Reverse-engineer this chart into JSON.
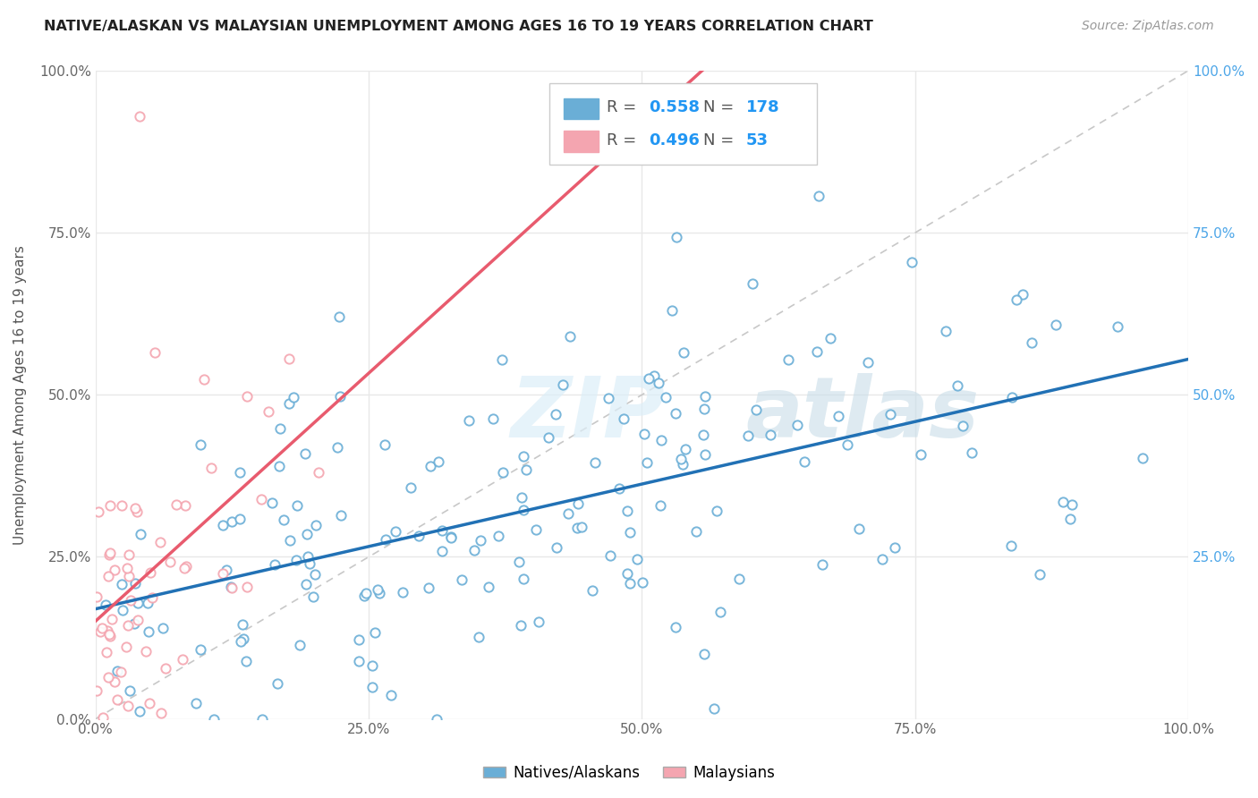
{
  "title": "NATIVE/ALASKAN VS MALAYSIAN UNEMPLOYMENT AMONG AGES 16 TO 19 YEARS CORRELATION CHART",
  "source": "Source: ZipAtlas.com",
  "ylabel": "Unemployment Among Ages 16 to 19 years",
  "legend_blue_label": "Natives/Alaskans",
  "legend_pink_label": "Malaysians",
  "blue_R": 0.558,
  "blue_N": 178,
  "pink_R": 0.496,
  "pink_N": 53,
  "blue_color": "#6aaed6",
  "pink_color": "#f4a5b0",
  "blue_line_color": "#2171b5",
  "pink_line_color": "#e85b6e",
  "dashed_line_color": "#c8c8c8",
  "watermark_zip": "ZIP",
  "watermark_atlas": "atlas",
  "background_color": "#ffffff",
  "grid_color": "#e8e8e8",
  "seed": 42,
  "xlim": [
    0.0,
    1.0
  ],
  "ylim": [
    0.0,
    1.0
  ],
  "right_tick_color": "#4da6e8",
  "legend_R_N_color": "#2196f3",
  "legend_text_color": "#555555"
}
